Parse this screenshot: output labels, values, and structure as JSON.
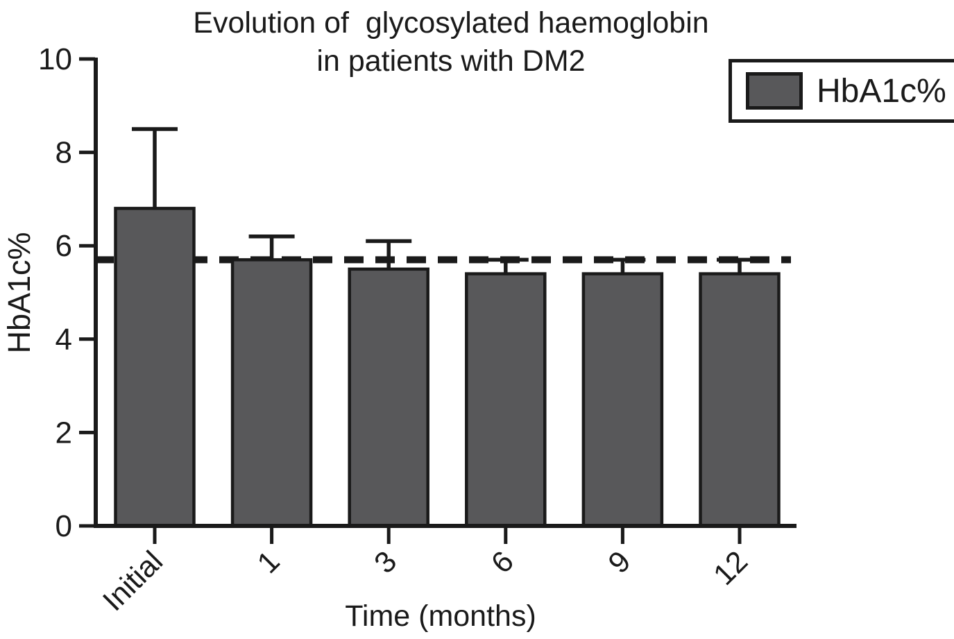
{
  "figure": {
    "background": "#ffffff"
  },
  "title": {
    "line1": "Evolution of  glycosylated haemoglobin",
    "line2": "in patients with DM2"
  },
  "legend": {
    "label": "HbA1c%",
    "position": "top-right",
    "swatch_color": "#58585a",
    "border_color": "#1a1a1a"
  },
  "axes": {
    "ylabel": "HbA1c%",
    "xlabel": "Time (months)"
  },
  "chart_data": {
    "type": "bar",
    "title": "Evolution of  glycosylated haemoglobin in patients with DM2",
    "xlabel": "Time (months)",
    "ylabel": "HbA1c%",
    "categories": [
      "Initial",
      "1",
      "3",
      "6",
      "9",
      "12"
    ],
    "series": [
      {
        "name": "HbA1c%",
        "values": [
          6.8,
          5.7,
          5.5,
          5.4,
          5.4,
          5.4
        ],
        "error_upper": [
          8.5,
          6.2,
          6.1,
          5.7,
          5.7,
          5.7
        ]
      }
    ],
    "reference_line": {
      "y": 5.7,
      "style": "dashed",
      "color": "#1a1a1a"
    },
    "ylim": [
      0,
      10
    ],
    "yticks": [
      0,
      2,
      4,
      6,
      8,
      10
    ],
    "xticklabel_rotation_deg": 45,
    "grid": false,
    "legend_position": "top-right",
    "colors": {
      "bar_fill": "#58585a",
      "bar_border": "#1a1a1a",
      "axis": "#1a1a1a",
      "text": "#1a1a1a",
      "background": "#ffffff"
    }
  }
}
